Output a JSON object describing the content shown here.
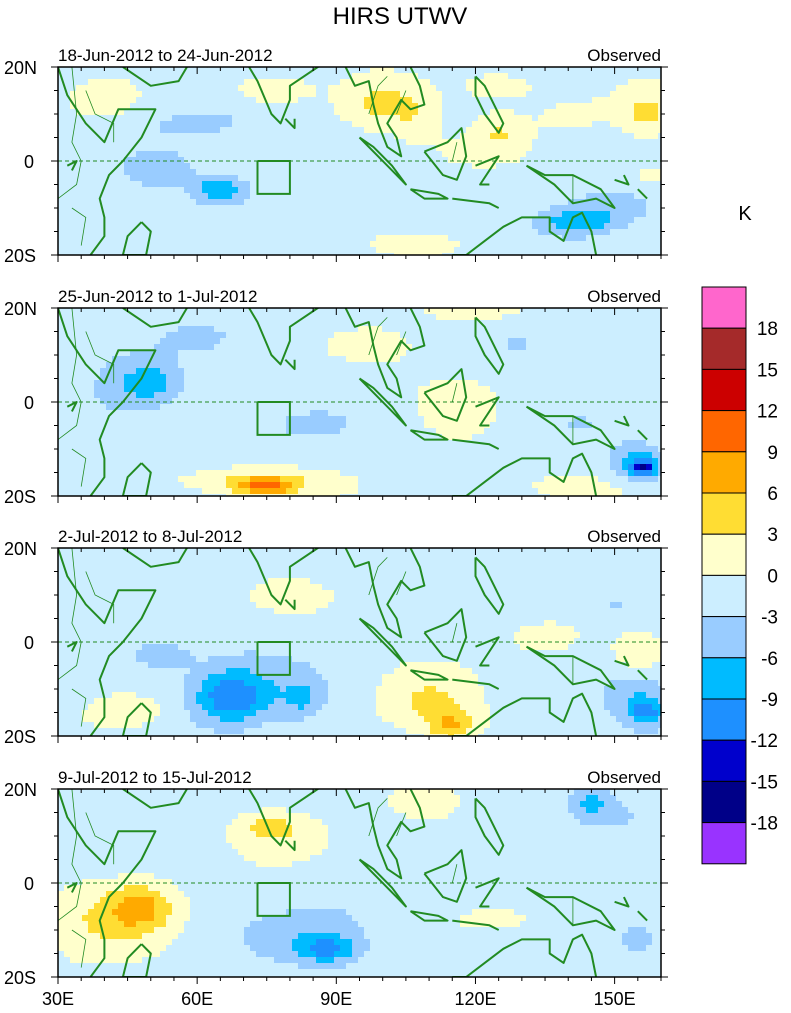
{
  "chart_data": {
    "type": "heatmap",
    "title": "HIRS UTWV",
    "unit_label": "K",
    "status_label": "Observed",
    "lat_ticks": [
      "20N",
      "0",
      "20S"
    ],
    "lon_ticks": [
      "30E",
      "60E",
      "90E",
      "120E",
      "150E"
    ],
    "lon_values": [
      30,
      60,
      90,
      120,
      150
    ],
    "lon_range": [
      30,
      160
    ],
    "lat_range": [
      -20,
      20
    ],
    "colorbar": {
      "levels": [
        "18",
        "15",
        "12",
        "9",
        "6",
        "3",
        "0",
        "-3",
        "-6",
        "-9",
        "-12",
        "-15",
        "-18"
      ],
      "colors": [
        "#ff66cc",
        "#a52a2a",
        "#cc0000",
        "#ff6600",
        "#ffaa00",
        "#ffdd33",
        "#ffffcc",
        "#cceeff",
        "#99ccff",
        "#00bbff",
        "#1e90ff",
        "#0000cc",
        "#000088",
        "#9933ff"
      ]
    },
    "panels": [
      {
        "date_range": "18-Jun-2012 to 24-Jun-2012",
        "blobs": [
          [
            40,
            12,
            8,
            4,
            0.8
          ],
          [
            60,
            8,
            18,
            5,
            -0.8
          ],
          [
            52,
            -2,
            8,
            4,
            -1.2
          ],
          [
            65,
            -6,
            6,
            3,
            -2.4
          ],
          [
            75,
            15,
            10,
            4,
            1.0
          ],
          [
            100,
            12,
            8,
            5,
            1.6
          ],
          [
            108,
            8,
            5,
            6,
            0.8
          ],
          [
            125,
            6,
            5,
            4,
            1.3
          ],
          [
            118,
            2,
            6,
            3,
            0.6
          ],
          [
            140,
            10,
            12,
            5,
            0.5
          ],
          [
            157,
            10,
            5,
            5,
            1.5
          ],
          [
            150,
            -10,
            10,
            4,
            -1.2
          ],
          [
            142,
            -13,
            8,
            3,
            -2.2
          ],
          [
            158,
            -3,
            4,
            3,
            0.8
          ],
          [
            110,
            -18,
            10,
            3,
            0.6
          ],
          [
            90,
            -10,
            20,
            4,
            -0.5
          ],
          [
            125,
            16,
            8,
            3,
            1.0
          ]
        ]
      },
      {
        "date_range": "25-Jun-2012 to 1-Jul-2012",
        "blobs": [
          [
            45,
            5,
            10,
            8,
            -1.0
          ],
          [
            50,
            4,
            6,
            4,
            -1.6
          ],
          [
            80,
            -5,
            20,
            6,
            -0.6
          ],
          [
            72,
            -17,
            15,
            3,
            1.6
          ],
          [
            75,
            -18,
            6,
            2,
            2.6
          ],
          [
            115,
            0,
            10,
            8,
            0.6
          ],
          [
            100,
            12,
            10,
            4,
            0.5
          ],
          [
            130,
            12,
            8,
            5,
            -0.6
          ],
          [
            140,
            -5,
            12,
            6,
            -0.5
          ],
          [
            155,
            -13,
            6,
            4,
            -1.8
          ],
          [
            156,
            -14,
            3,
            2,
            -3.2
          ],
          [
            140,
            -18,
            15,
            3,
            0.5
          ],
          [
            120,
            19,
            12,
            2,
            0.8
          ],
          [
            60,
            14,
            10,
            4,
            -0.6
          ]
        ]
      },
      {
        "date_range": "2-Jul-2012 to 8-Jul-2012",
        "blobs": [
          [
            70,
            -10,
            15,
            8,
            -1.4
          ],
          [
            67,
            -12,
            7,
            5,
            -2.4
          ],
          [
            52,
            -3,
            6,
            3,
            -1.4
          ],
          [
            45,
            -15,
            10,
            4,
            0.9
          ],
          [
            110,
            -13,
            10,
            6,
            1.5
          ],
          [
            115,
            -18,
            5,
            3,
            2.2
          ],
          [
            80,
            10,
            8,
            3,
            0.8
          ],
          [
            83,
            -12,
            4,
            4,
            -1.3
          ],
          [
            155,
            -12,
            8,
            6,
            -1.4
          ],
          [
            157,
            -15,
            4,
            3,
            -2.2
          ],
          [
            135,
            0,
            10,
            4,
            0.6
          ],
          [
            155,
            -2,
            5,
            4,
            1.3
          ],
          [
            150,
            8,
            5,
            3,
            -0.8
          ],
          [
            35,
            5,
            6,
            10,
            -0.6
          ],
          [
            100,
            15,
            10,
            4,
            -0.5
          ]
        ]
      },
      {
        "date_range": "9-Jul-2012 to 15-Jul-2012",
        "blobs": [
          [
            40,
            -8,
            12,
            8,
            1.3
          ],
          [
            48,
            -5,
            7,
            5,
            2.2
          ],
          [
            85,
            -12,
            15,
            6,
            -1.2
          ],
          [
            88,
            -14,
            6,
            3,
            -2.2
          ],
          [
            80,
            10,
            10,
            5,
            0.8
          ],
          [
            75,
            12,
            6,
            3,
            1.3
          ],
          [
            110,
            17,
            6,
            3,
            1.2
          ],
          [
            150,
            15,
            12,
            5,
            -0.8
          ],
          [
            155,
            -12,
            6,
            4,
            -1.2
          ],
          [
            125,
            -8,
            12,
            4,
            0.7
          ],
          [
            95,
            -5,
            15,
            5,
            -0.4
          ],
          [
            130,
            5,
            10,
            4,
            -0.5
          ],
          [
            145,
            17,
            4,
            3,
            -1.5
          ]
        ]
      }
    ]
  }
}
